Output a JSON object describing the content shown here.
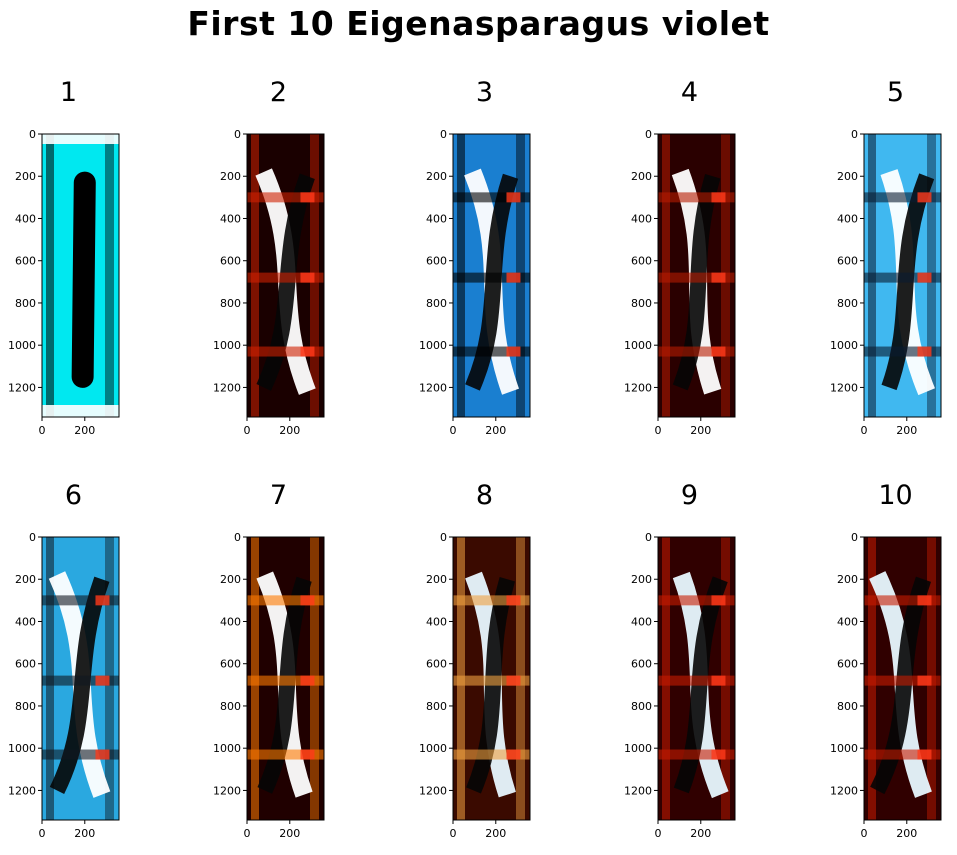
{
  "figure": {
    "title": "First 10 Eigenasparagus violet"
  },
  "chart_data": {
    "type": "image-grid",
    "title": "First 10 Eigenasparagus violet",
    "rows": 2,
    "cols": 5,
    "xlim": [
      0,
      360
    ],
    "ylim": [
      1340,
      0
    ],
    "xticks": [
      "0",
      "200"
    ],
    "yticks": [
      "0",
      "200",
      "400",
      "600",
      "800",
      "1000",
      "1200"
    ],
    "grid": false,
    "panels": [
      {
        "label": "1",
        "palette": [
          "#00e8f0",
          "#000000",
          "#ffffff"
        ]
      },
      {
        "label": "2",
        "palette": [
          "#1a0000",
          "#d02000",
          "#ffffff"
        ]
      },
      {
        "label": "3",
        "palette": [
          "#1a7fd0",
          "#000000",
          "#ffffff"
        ]
      },
      {
        "label": "4",
        "palette": [
          "#2a0000",
          "#b81a00",
          "#ffffff"
        ]
      },
      {
        "label": "5",
        "palette": [
          "#40b8f0",
          "#0a1a30",
          "#ffffff"
        ]
      },
      {
        "label": "6",
        "palette": [
          "#2aa8e0",
          "#101820",
          "#ffffff"
        ]
      },
      {
        "label": "7",
        "palette": [
          "#200000",
          "#ff7a00",
          "#ffffff"
        ]
      },
      {
        "label": "8",
        "palette": [
          "#3a0a00",
          "#f0a040",
          "#e8f8ff"
        ]
      },
      {
        "label": "9",
        "palette": [
          "#300000",
          "#c81a00",
          "#e8f8ff"
        ]
      },
      {
        "label": "10",
        "palette": [
          "#300000",
          "#c81a00",
          "#e8f8ff"
        ]
      }
    ]
  }
}
